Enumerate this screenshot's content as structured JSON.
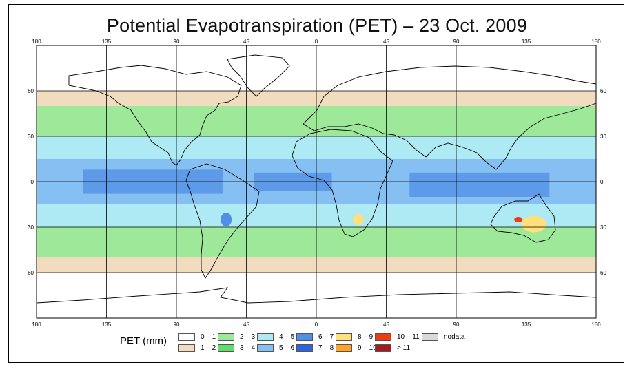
{
  "title": "Potential Evapotranspiration (PET) – 23 Oct. 2009",
  "chart_data": {
    "type": "heatmap",
    "title": "Potential Evapotranspiration (PET) – 23 Oct. 2009",
    "x_ticks": [
      "180",
      "135",
      "90",
      "45",
      "0",
      "45",
      "90",
      "135",
      "180"
    ],
    "y_ticks": [
      "60",
      "30",
      "0",
      "30",
      "60"
    ],
    "legend_title": "PET (mm)",
    "legend": [
      {
        "label": "0 – 1",
        "color": "#ffffff"
      },
      {
        "label": "1 – 2",
        "color": "#f2dcc0"
      },
      {
        "label": "2 – 3",
        "color": "#9ee89a"
      },
      {
        "label": "3 – 4",
        "color": "#5fdc6a"
      },
      {
        "label": "4 – 5",
        "color": "#aeeaf4"
      },
      {
        "label": "5 – 6",
        "color": "#86bff2"
      },
      {
        "label": "6 – 7",
        "color": "#4f8fe6"
      },
      {
        "label": "7 – 8",
        "color": "#2c63de"
      },
      {
        "label": "8 – 9",
        "color": "#ffe07a"
      },
      {
        "label": "9 – 10",
        "color": "#ffa424"
      },
      {
        "label": "10 – 11",
        "color": "#f03a12"
      },
      {
        "label": "> 11",
        "color": "#a61c1c"
      },
      {
        "label": "nodata",
        "color": "#d9d9d9"
      }
    ],
    "latitude_bands": [
      {
        "lat": [
          90,
          60
        ],
        "pet_class": "0 – 1"
      },
      {
        "lat": [
          60,
          50
        ],
        "pet_class": "1 – 2"
      },
      {
        "lat": [
          50,
          30
        ],
        "pet_class": "2 – 3"
      },
      {
        "lat": [
          30,
          15
        ],
        "pet_class": "4 – 5"
      },
      {
        "lat": [
          15,
          -15
        ],
        "pet_class": "5 – 6"
      },
      {
        "lat": [
          -15,
          -30
        ],
        "pet_class": "4 – 5"
      },
      {
        "lat": [
          -30,
          -50
        ],
        "pet_class": "2 – 3"
      },
      {
        "lat": [
          -50,
          -60
        ],
        "pet_class": "1 – 2"
      },
      {
        "lat": [
          -60,
          -90
        ],
        "pet_class": "0 – 1"
      }
    ],
    "hotspots": [
      {
        "region": "Australia",
        "pet_class": "8 – 9"
      },
      {
        "region": "Australia interior",
        "pet_class": "10 – 11"
      },
      {
        "region": "Southern Africa",
        "pet_class": "8 – 9"
      },
      {
        "region": "South America",
        "pet_class": "6 – 7"
      }
    ]
  }
}
